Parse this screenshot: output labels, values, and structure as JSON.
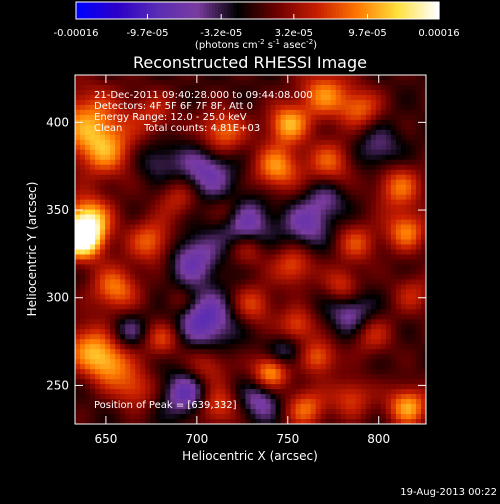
{
  "chart_data": {
    "type": "heatmap",
    "title": "Reconstructed RHESSI Image",
    "xlabel": "Heliocentric X (arcsec)",
    "ylabel": "Heliocentric Y (arcsec)",
    "xlim": [
      633,
      826
    ],
    "ylim": [
      228,
      427
    ],
    "xticks": [
      650,
      700,
      750,
      800
    ],
    "yticks": [
      250,
      300,
      350,
      400
    ],
    "colorbar": {
      "min": -0.00016,
      "max": 0.00016,
      "ticks": [
        "-0.00016",
        "-9.7e-05",
        "-3.2e-05",
        "3.2e-05",
        "9.7e-05",
        "0.00016"
      ],
      "unit_base": "(photons cm",
      "unit_exp1": "-2",
      "unit_mid": " s",
      "unit_exp2": "-1",
      "unit_mid2": " asec",
      "unit_exp3": "-2",
      "unit_end": ")",
      "colormap": [
        "#0000ff",
        "#2b00c8",
        "#5a2cb4",
        "#7a3ca0",
        "#000000",
        "#6e0000",
        "#c81e00",
        "#ff7800",
        "#ffe03c",
        "#ffffff"
      ]
    },
    "annotations": {
      "time_range": "21-Dec-2011 09:40:28.000 to 09:44:08.000",
      "detectors": "Detectors: 4F 5F 6F 7F 8F, Att 0",
      "energy": "Energy Range: 12.0 - 25.0 keV",
      "method": "Clean",
      "counts": "Total counts: 4.81E+03",
      "peak": "Position of Peak = [639,332]"
    },
    "peak": {
      "x": 639,
      "y": 332
    },
    "footer_date": "19-Aug-2013 00:22"
  }
}
